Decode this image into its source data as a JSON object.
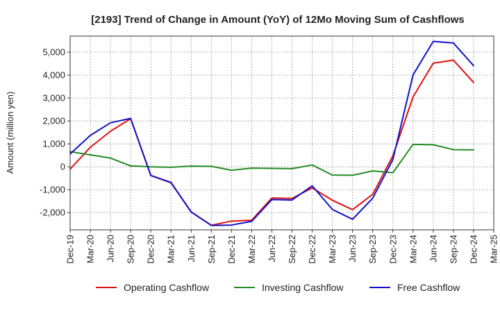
{
  "chart_data": {
    "type": "line",
    "title": "[2193]  Trend of Change in Amount (YoY) of 12Mo Moving Sum of Cashflows",
    "xlabel": "",
    "ylabel": "Amount (million yen)",
    "ylim": [
      -2750,
      5700
    ],
    "yticks": [
      -2000,
      -1000,
      0,
      1000,
      2000,
      3000,
      4000,
      5000
    ],
    "ytick_labels": [
      "-2,000",
      "-1,000",
      "0",
      "1,000",
      "2,000",
      "3,000",
      "4,000",
      "5,000"
    ],
    "grid": true,
    "legend_position": "bottom",
    "x": [
      "Dec-19",
      "Mar-20",
      "Jun-20",
      "Sep-20",
      "Dec-20",
      "Mar-21",
      "Jun-21",
      "Sep-21",
      "Dec-21",
      "Mar-22",
      "Jun-22",
      "Sep-22",
      "Dec-22",
      "Mar-23",
      "Jun-23",
      "Sep-23",
      "Dec-23",
      "Mar-24",
      "Jun-24",
      "Sep-24",
      "Dec-24",
      "Mar-25"
    ],
    "series": [
      {
        "name": "Operating Cashflow",
        "color": "#dd1111",
        "values": [
          -100,
          850,
          1550,
          2100,
          -380,
          -700,
          -1970,
          -2550,
          -2370,
          -2330,
          -1360,
          -1380,
          -920,
          -1460,
          -1870,
          -1200,
          480,
          3050,
          4520,
          4650,
          3680,
          null
        ]
      },
      {
        "name": "Investing Cashflow",
        "color": "#228b22",
        "values": [
          660,
          520,
          380,
          40,
          0,
          -20,
          30,
          20,
          -150,
          -60,
          -70,
          -80,
          80,
          -360,
          -370,
          -180,
          -260,
          980,
          960,
          750,
          740,
          null
        ]
      },
      {
        "name": "Free Cashflow",
        "color": "#1111cc",
        "values": [
          560,
          1370,
          1920,
          2110,
          -380,
          -680,
          -1970,
          -2560,
          -2540,
          -2380,
          -1430,
          -1450,
          -830,
          -1860,
          -2290,
          -1370,
          320,
          4010,
          5470,
          5400,
          4410,
          null
        ]
      }
    ]
  }
}
